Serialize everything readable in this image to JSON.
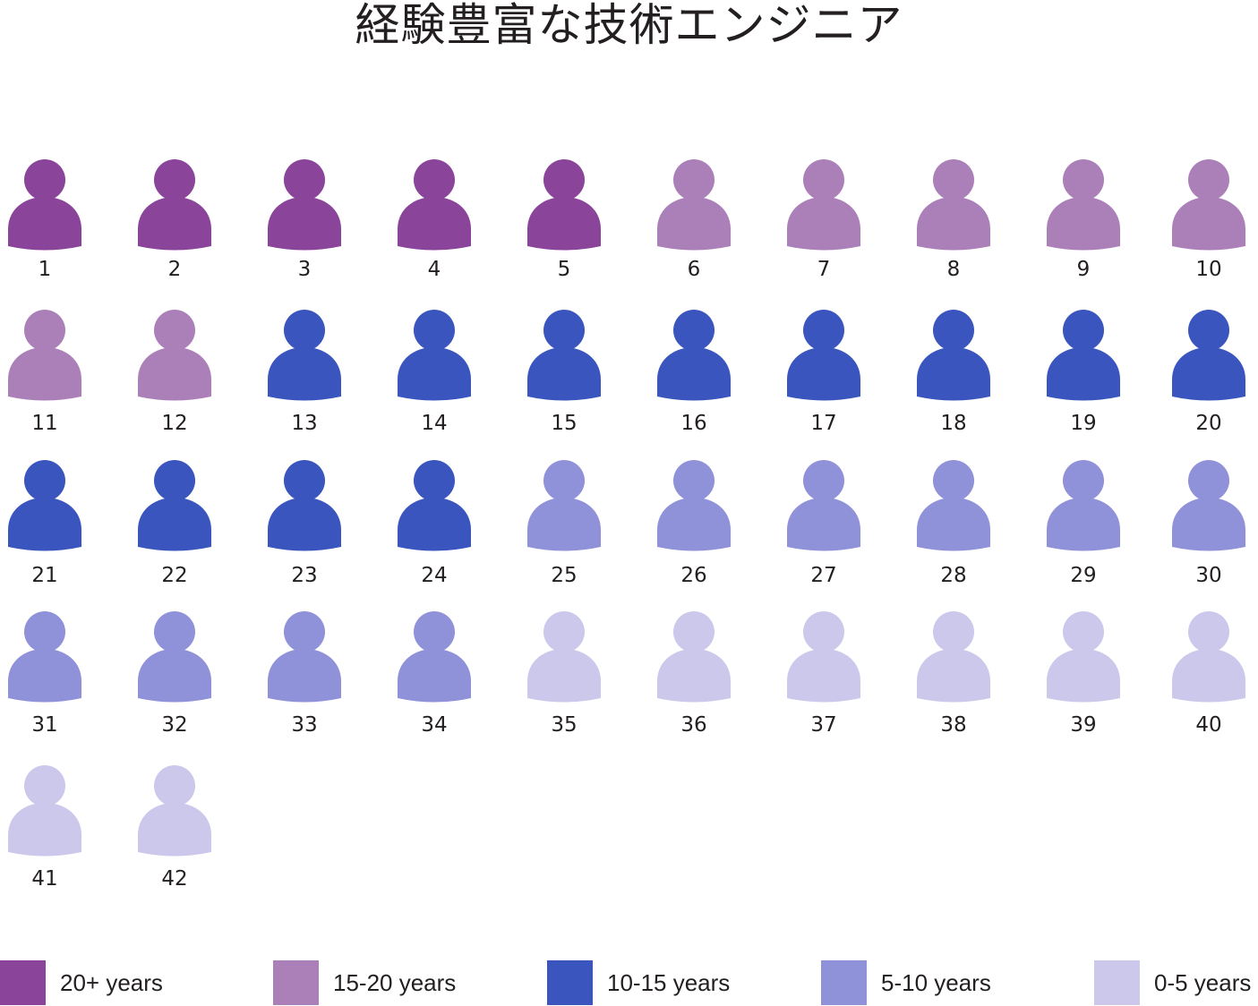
{
  "title": "経験豊富な技術エンジニア",
  "chart_data": {
    "type": "pictograph",
    "title": "経験豊富な技術エンジニア",
    "unit_icon": "person-icon",
    "total": 42,
    "categories": [
      {
        "label": "20+ years",
        "count": 5,
        "color": "#8a4499"
      },
      {
        "label": "15-20 years",
        "count": 7,
        "color": "#ab80b9"
      },
      {
        "label": "10-15 years",
        "count": 12,
        "color": "#3a55be"
      },
      {
        "label": "5-10 years",
        "count": 10,
        "color": "#8f91d9"
      },
      {
        "label": "0-5 years",
        "count": 8,
        "color": "#cbc8eb"
      }
    ],
    "people": [
      {
        "n": "1",
        "category": "20+ years"
      },
      {
        "n": "2",
        "category": "20+ years"
      },
      {
        "n": "3",
        "category": "20+ years"
      },
      {
        "n": "4",
        "category": "20+ years"
      },
      {
        "n": "5",
        "category": "20+ years"
      },
      {
        "n": "6",
        "category": "15-20 years"
      },
      {
        "n": "7",
        "category": "15-20 years"
      },
      {
        "n": "8",
        "category": "15-20 years"
      },
      {
        "n": "9",
        "category": "15-20 years"
      },
      {
        "n": "10",
        "category": "15-20 years"
      },
      {
        "n": "11",
        "category": "15-20 years"
      },
      {
        "n": "12",
        "category": "15-20 years"
      },
      {
        "n": "13",
        "category": "10-15 years"
      },
      {
        "n": "14",
        "category": "10-15 years"
      },
      {
        "n": "15",
        "category": "10-15 years"
      },
      {
        "n": "16",
        "category": "10-15 years"
      },
      {
        "n": "17",
        "category": "10-15 years"
      },
      {
        "n": "18",
        "category": "10-15 years"
      },
      {
        "n": "19",
        "category": "10-15 years"
      },
      {
        "n": "20",
        "category": "10-15 years"
      },
      {
        "n": "21",
        "category": "10-15 years"
      },
      {
        "n": "22",
        "category": "10-15 years"
      },
      {
        "n": "23",
        "category": "10-15 years"
      },
      {
        "n": "24",
        "category": "10-15 years"
      },
      {
        "n": "25",
        "category": "5-10 years"
      },
      {
        "n": "26",
        "category": "5-10 years"
      },
      {
        "n": "27",
        "category": "5-10 years"
      },
      {
        "n": "28",
        "category": "5-10 years"
      },
      {
        "n": "29",
        "category": "5-10 years"
      },
      {
        "n": "30",
        "category": "5-10 years"
      },
      {
        "n": "31",
        "category": "5-10 years"
      },
      {
        "n": "32",
        "category": "5-10 years"
      },
      {
        "n": "33",
        "category": "5-10 years"
      },
      {
        "n": "34",
        "category": "5-10 years"
      },
      {
        "n": "35",
        "category": "0-5 years"
      },
      {
        "n": "36",
        "category": "0-5 years"
      },
      {
        "n": "37",
        "category": "0-5 years"
      },
      {
        "n": "38",
        "category": "0-5 years"
      },
      {
        "n": "39",
        "category": "0-5 years"
      },
      {
        "n": "40",
        "category": "0-5 years"
      },
      {
        "n": "41",
        "category": "0-5 years"
      },
      {
        "n": "42",
        "category": "0-5 years"
      }
    ],
    "legend_position": "bottom"
  }
}
